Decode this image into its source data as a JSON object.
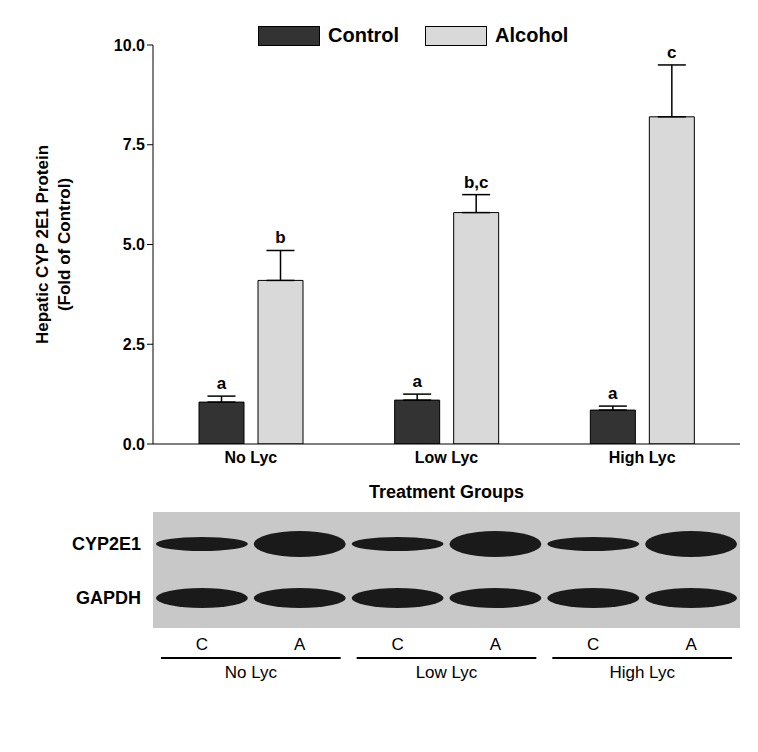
{
  "chart_data": {
    "type": "bar",
    "categories": [
      "No Lyc",
      "Low Lyc",
      "High Lyc"
    ],
    "series": [
      {
        "name": "Control",
        "color": "#333333",
        "values": [
          1.05,
          1.1,
          0.85
        ],
        "errors": [
          0.15,
          0.15,
          0.1
        ],
        "letters": [
          "a",
          "a",
          "a"
        ]
      },
      {
        "name": "Alcohol",
        "color": "#d9d9d9",
        "values": [
          4.1,
          5.8,
          8.2
        ],
        "errors": [
          0.75,
          0.45,
          1.3
        ],
        "letters": [
          "b",
          "b,c",
          "c"
        ]
      }
    ],
    "y_label": [
      "Hepatic CYP 2E1 Protein",
      "(Fold of Control)"
    ],
    "x_label": "Treatment Groups",
    "ylim": [
      0,
      10
    ],
    "yticks": [
      {
        "value": 0,
        "label": "0.0"
      },
      {
        "value": 2.5,
        "label": "2.5"
      },
      {
        "value": 5,
        "label": "5.0"
      },
      {
        "value": 7.5,
        "label": "7.5"
      },
      {
        "value": 10,
        "label": "10.0"
      }
    ],
    "grid": false,
    "legend": "top",
    "blot": {
      "rows": [
        "CYP2E1",
        "GAPDH"
      ],
      "lanes": [
        "C",
        "A",
        "C",
        "A",
        "C",
        "A"
      ],
      "groups": [
        "No Lyc",
        "Low Lyc",
        "High Lyc"
      ]
    }
  }
}
